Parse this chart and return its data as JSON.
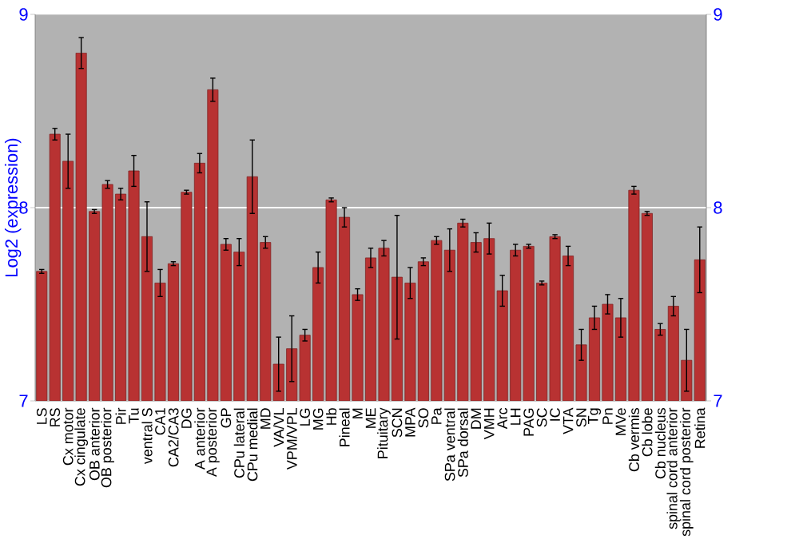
{
  "chart_data": {
    "type": "bar",
    "ylabel": "Log2 (expression)",
    "categories": [
      "LS",
      "RS",
      "Cx motor",
      "Cx cingulate",
      "OB anterior",
      "OB posterior",
      "Pir",
      "Tu",
      "ventral S",
      "CA1",
      "CA2/CA3",
      "DG",
      "A anterior",
      "A posterior",
      "GP",
      "CPu lateral",
      "CPu medial",
      "MD",
      "VA/VL",
      "VPM/VPL",
      "LG",
      "MG",
      "Hb",
      "Pineal",
      "M",
      "ME",
      "Pituitary",
      "SCN",
      "MPA",
      "SO",
      "Pa",
      "SPa ventral",
      "SPa dorsal",
      "DM",
      "VMH",
      "Arc",
      "LH",
      "PAG",
      "SC",
      "IC",
      "VTA",
      "SN",
      "Tg",
      "Pn",
      "MVe",
      "Cb vermis",
      "Cb lobe",
      "Cb nucleus",
      "spinal cord anterior",
      "spinal cord posterior",
      "Retina"
    ],
    "values": [
      7.67,
      8.38,
      8.24,
      8.8,
      7.98,
      8.12,
      8.07,
      8.19,
      7.85,
      7.61,
      7.71,
      8.08,
      8.23,
      8.61,
      7.81,
      7.77,
      8.16,
      7.82,
      7.19,
      7.27,
      7.34,
      7.69,
      8.04,
      7.95,
      7.55,
      7.74,
      7.79,
      7.64,
      7.61,
      7.72,
      7.83,
      7.78,
      7.92,
      7.82,
      7.84,
      7.57,
      7.78,
      7.8,
      7.61,
      7.85,
      7.75,
      7.29,
      7.43,
      7.5,
      7.43,
      8.09,
      7.97,
      7.37,
      7.49,
      7.21,
      7.73
    ],
    "errors": [
      0.01,
      0.03,
      0.14,
      0.08,
      0.01,
      0.02,
      0.03,
      0.08,
      0.18,
      0.07,
      0.01,
      0.01,
      0.05,
      0.06,
      0.03,
      0.07,
      0.19,
      0.03,
      0.14,
      0.17,
      0.03,
      0.08,
      0.01,
      0.05,
      0.03,
      0.05,
      0.04,
      0.32,
      0.08,
      0.02,
      0.02,
      0.11,
      0.02,
      0.05,
      0.08,
      0.08,
      0.03,
      0.01,
      0.01,
      0.01,
      0.05,
      0.08,
      0.06,
      0.05,
      0.1,
      0.02,
      0.01,
      0.03,
      0.05,
      0.16,
      0.17
    ],
    "color": "#b83232",
    "ylim": [
      7,
      9
    ],
    "yticks": [
      7,
      8,
      9
    ],
    "y2lim": [
      7,
      9
    ],
    "y2ticks": [
      7,
      8,
      9
    ],
    "grid": "y"
  }
}
